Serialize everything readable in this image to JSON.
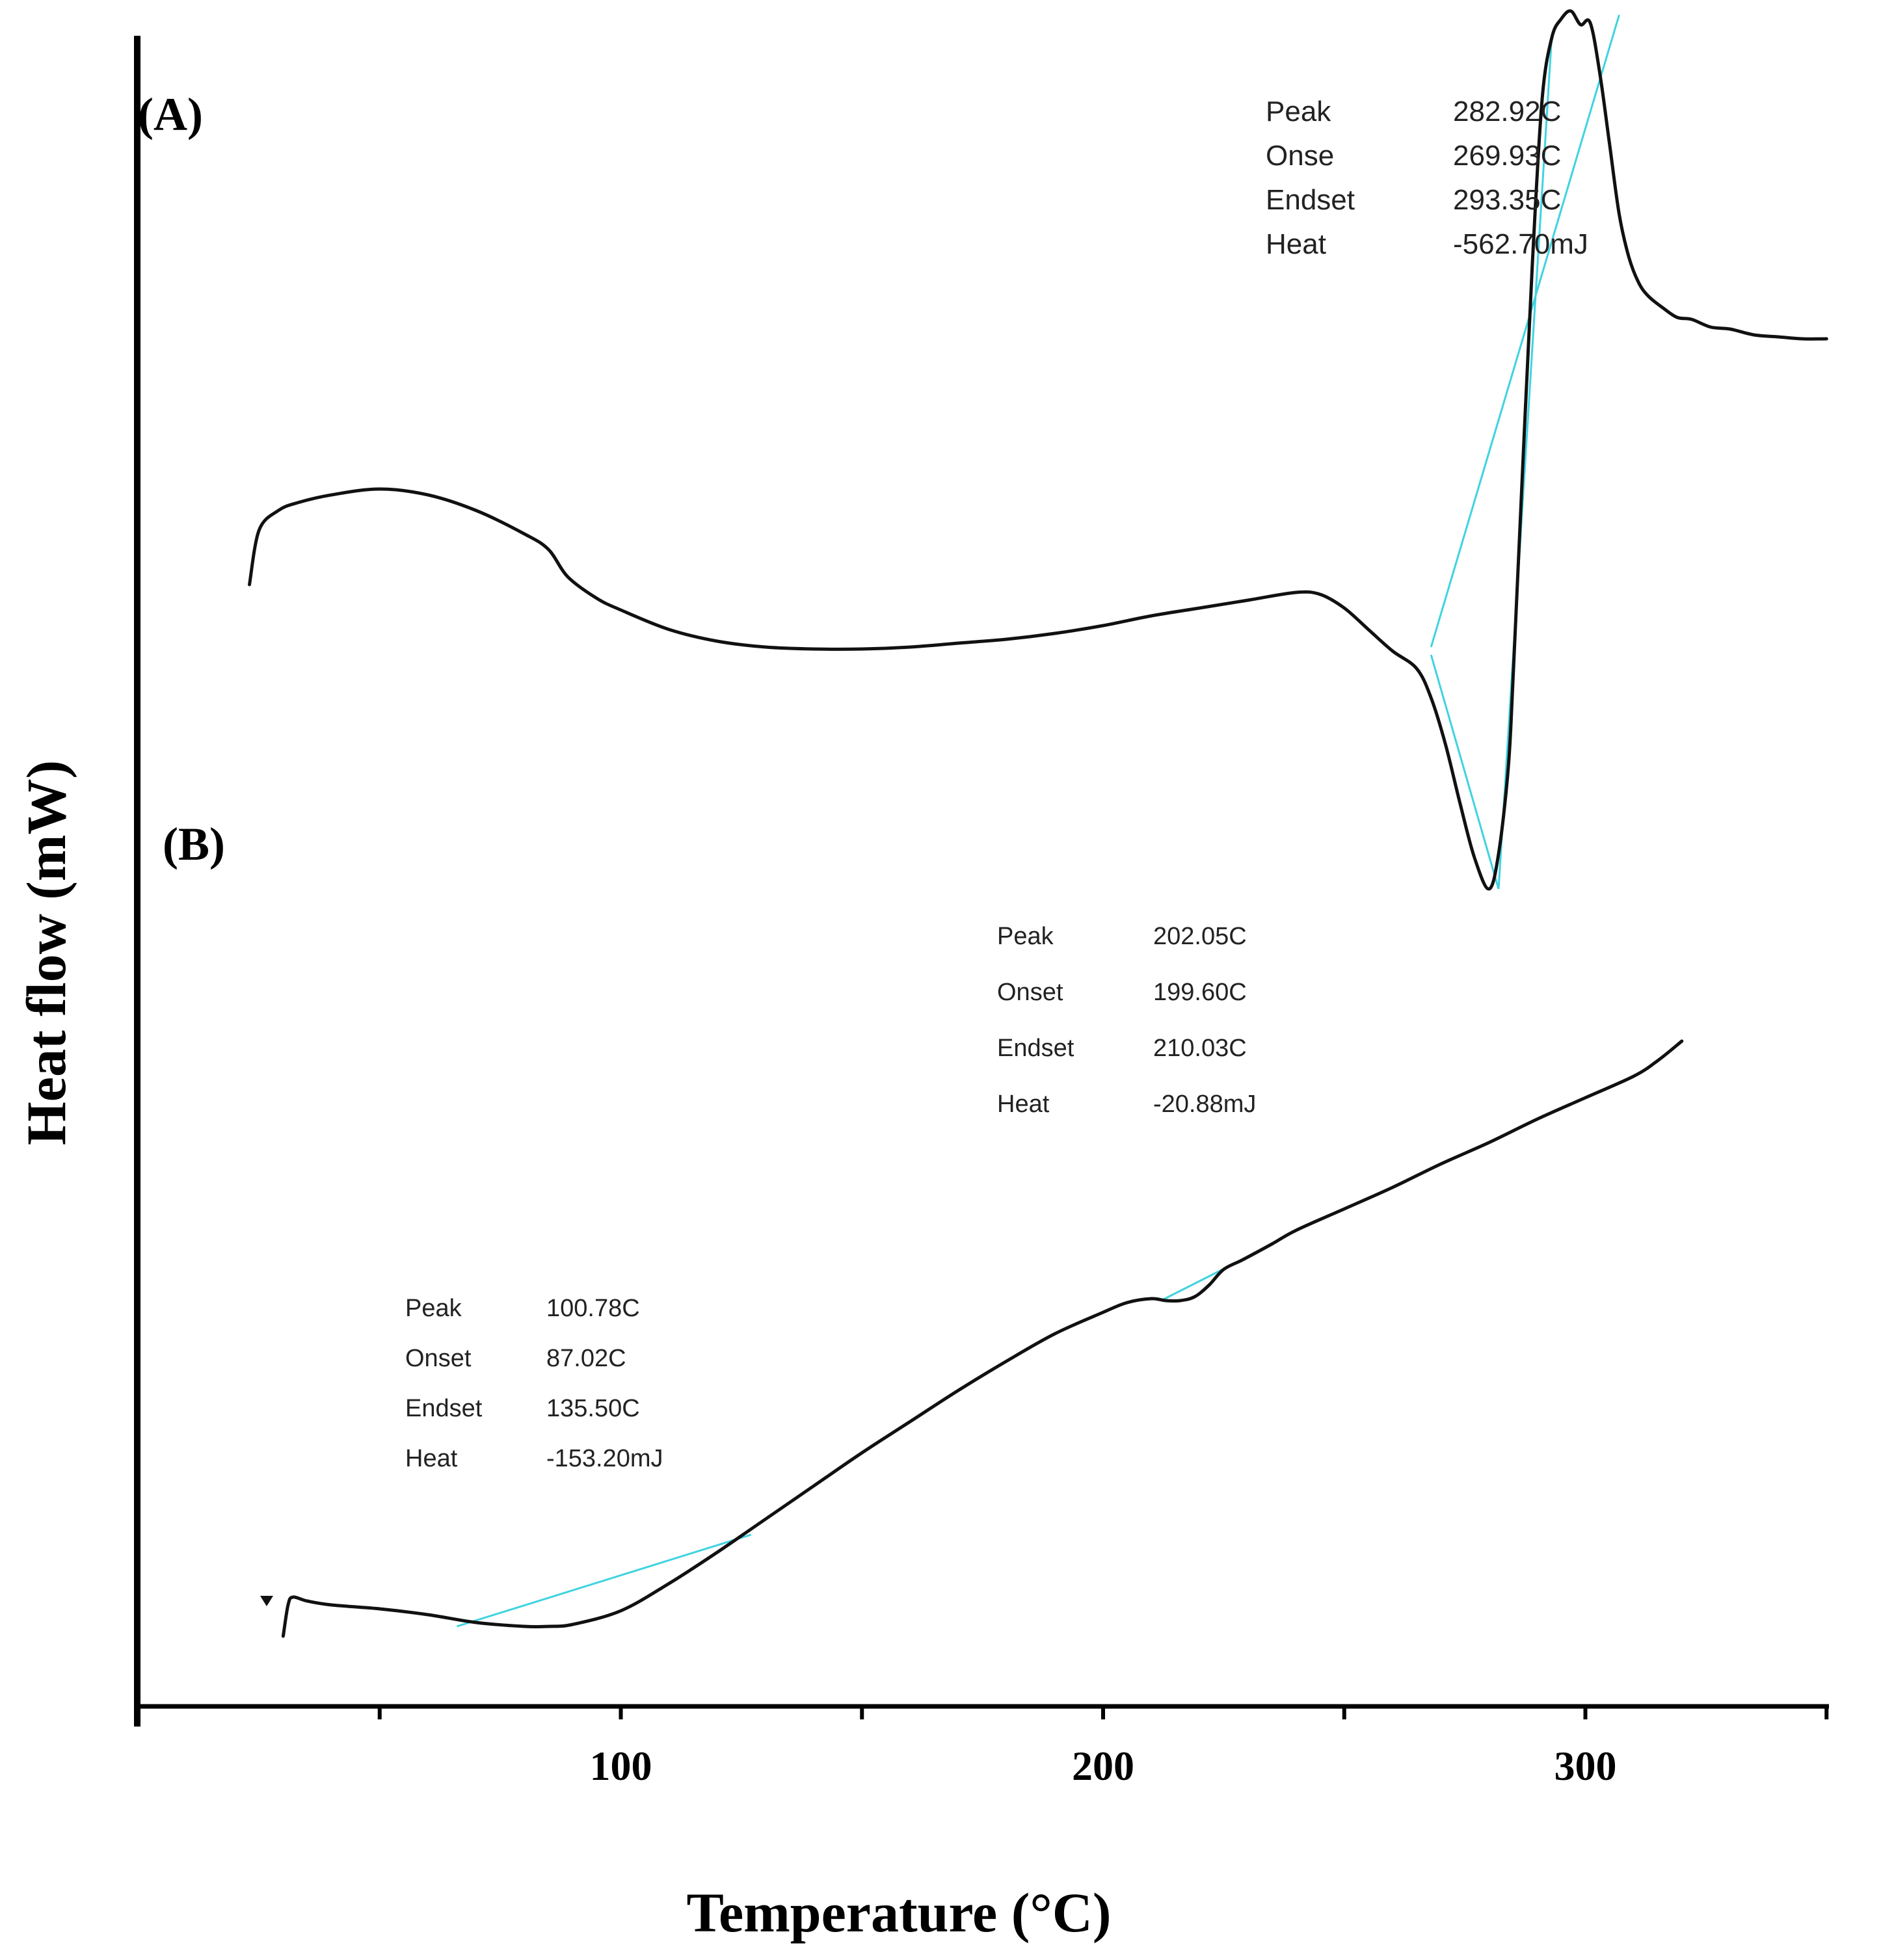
{
  "chart_data": {
    "type": "line",
    "title": "",
    "xlabel": "Temperature (°C)",
    "ylabel": "Heat flow (mW)",
    "x_ticks": [
      100,
      200,
      300
    ],
    "x_range": [
      0,
      350
    ],
    "y_ticks": [],
    "grid": false,
    "series": [
      {
        "name": "(A)",
        "label": "(A)",
        "x": [
          23,
          25,
          29,
          33,
          40,
          50,
          60,
          70,
          80,
          85,
          89,
          95,
          100,
          110,
          120,
          130,
          140,
          150,
          160,
          170,
          180,
          190,
          200,
          210,
          220,
          230,
          240,
          245,
          250,
          255,
          260,
          265,
          268,
          271,
          274,
          277,
          280,
          282,
          284,
          285,
          287,
          289,
          291,
          293,
          295,
          297,
          299,
          301,
          303,
          305,
          307,
          309,
          311,
          313,
          316,
          319,
          322,
          326,
          330,
          335,
          340,
          345,
          350
        ],
        "y": [
          7.2,
          8.6,
          9.1,
          9.3,
          9.5,
          9.65,
          9.5,
          9.1,
          8.5,
          8.1,
          7.4,
          6.85,
          6.55,
          6.05,
          5.75,
          5.6,
          5.55,
          5.55,
          5.6,
          5.7,
          5.8,
          5.95,
          6.15,
          6.4,
          6.6,
          6.8,
          7.0,
          6.95,
          6.6,
          6.05,
          5.5,
          5.05,
          4.3,
          3.1,
          1.6,
          0.2,
          -0.6,
          0.3,
          2.5,
          4.8,
          10.2,
          15.4,
          19.6,
          21.2,
          21.7,
          21.9,
          21.55,
          21.6,
          20.3,
          18.5,
          16.7,
          15.6,
          14.95,
          14.6,
          14.3,
          14.05,
          14.0,
          13.8,
          13.75,
          13.6,
          13.55,
          13.5,
          13.5
        ],
        "annotation": [
          {
            "label": "Peak",
            "value": "282.92C"
          },
          {
            "label": "Onse",
            "value": "269.93C"
          },
          {
            "label": "Endset",
            "value": "293.35C"
          },
          {
            "label": "Heat",
            "value": "-562.70mJ"
          }
        ]
      },
      {
        "name": "(B)",
        "label": "(B)",
        "x": [
          30,
          31,
          32,
          35,
          40,
          50,
          60,
          70,
          80,
          85,
          90,
          100,
          110,
          120,
          130,
          140,
          150,
          160,
          170,
          180,
          190,
          200,
          205,
          210,
          213,
          216,
          219,
          222,
          225,
          229,
          235,
          240,
          250,
          260,
          270,
          280,
          290,
          300,
          310,
          315,
          320
        ],
        "y": [
          -0.3,
          0.5,
          0.7,
          0.6,
          0.5,
          0.4,
          0.25,
          0.05,
          -0.05,
          -0.05,
          0.0,
          0.35,
          1.05,
          1.85,
          2.7,
          3.55,
          4.4,
          5.2,
          6.0,
          6.75,
          7.45,
          8.0,
          8.25,
          8.35,
          8.3,
          8.3,
          8.4,
          8.7,
          9.1,
          9.35,
          9.75,
          10.1,
          10.65,
          11.2,
          11.8,
          12.35,
          12.95,
          13.5,
          14.05,
          14.45,
          14.95
        ],
        "annotations": [
          [
            {
              "label": "Peak",
              "value": "202.05C"
            },
            {
              "label": "Onset",
              "value": "199.60C"
            },
            {
              "label": "Endset",
              "value": "210.03C"
            },
            {
              "label": "Heat",
              "value": "-20.88mJ"
            }
          ],
          [
            {
              "label": "Peak",
              "value": "100.78C"
            },
            {
              "label": "Onset",
              "value": "87.02C"
            },
            {
              "label": "Endset",
              "value": "135.50C"
            },
            {
              "label": "Heat",
              "value": "-153.20mJ"
            }
          ]
        ]
      }
    ],
    "baselines": [
      {
        "series": "(A)",
        "x": [
          268,
          307
        ],
        "y": [
          5.6,
          21.8
        ]
      },
      {
        "series": "(B)",
        "x": [
          66,
          127
        ],
        "y": [
          -0.05,
          2.3
        ]
      },
      {
        "series": "(B)",
        "x": [
          212,
          228
        ],
        "y": [
          8.3,
          9.3
        ]
      }
    ]
  }
}
